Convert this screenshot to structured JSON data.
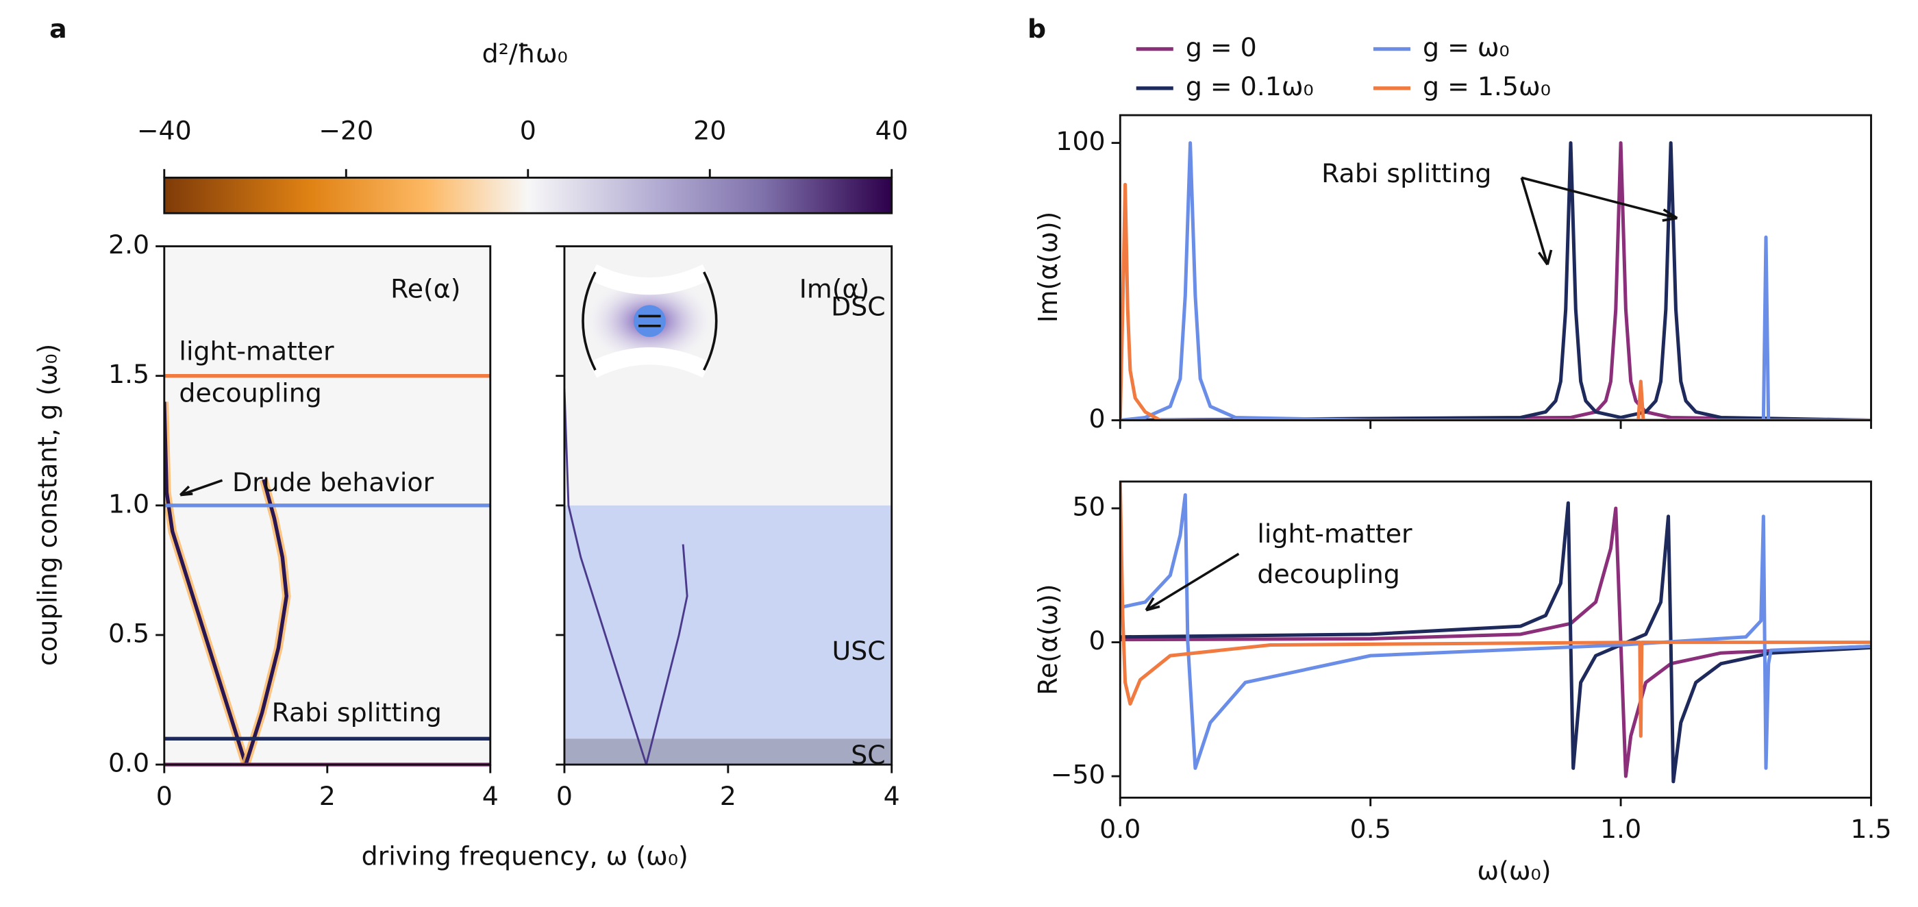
{
  "chart_data": [
    {
      "type": "colorbar",
      "panel_label": "a",
      "title": "d²/ħω₀",
      "lim": [
        -40,
        40
      ],
      "ticks": [
        {
          "value": -40,
          "label": "−40"
        },
        {
          "value": -20,
          "label": "−20"
        },
        0,
        20,
        40
      ]
    },
    {
      "type": "heatmap",
      "title": "Re(α)",
      "xlabel": "driving frequency, ω (ω₀)",
      "ylabel": "coupling constant, g (ω₀)",
      "xlim": [
        0,
        4
      ],
      "xticks": [
        0,
        2,
        4
      ],
      "ylim": [
        0,
        2
      ],
      "yticks": [
        {
          "value": 0,
          "label": "0.0"
        },
        0.5,
        {
          "value": 1,
          "label": "1.0"
        },
        1.5,
        {
          "value": 2,
          "label": "2.0"
        }
      ],
      "hlines": [
        {
          "value": 1.5,
          "color": "#f07a40"
        },
        {
          "value": 1,
          "color": "#6a8de8"
        },
        {
          "value": 0.1,
          "color": "#1f2a5c"
        },
        {
          "value": 0,
          "color": "#8b2f7a"
        }
      ],
      "curve_color": "#2a1650",
      "curves": [
        {
          "x": [
            1.0,
            0.8,
            0.6,
            0.4,
            0.2,
            0.1,
            0.03,
            0
          ],
          "y": [
            0,
            0.2,
            0.4,
            0.6,
            0.8,
            0.9,
            1.05,
            1.4
          ]
        },
        {
          "x": [
            1.0,
            1.2,
            1.4,
            1.5,
            1.45,
            1.35,
            1.22
          ],
          "y": [
            0,
            0.2,
            0.45,
            0.65,
            0.8,
            0.95,
            1.1
          ]
        }
      ],
      "annotations": [
        "light-matter",
        "decoupling",
        "Drude behavior",
        "Rabi splitting"
      ]
    },
    {
      "type": "heatmap",
      "title": "Im(α)",
      "xlim": [
        0,
        4
      ],
      "xticks": [
        0,
        2,
        4
      ],
      "ylim": [
        0,
        2
      ],
      "regions": [
        {
          "label": "DSC",
          "from": 1,
          "to": 2,
          "color": "#f4f4f4"
        },
        {
          "label": "USC",
          "from": 0.1,
          "to": 1,
          "color": "#c9d5f3"
        },
        {
          "label": "SC",
          "from": 0,
          "to": 0.1,
          "color": "#a5aac2"
        }
      ],
      "curve_color": "#4b3a8c",
      "curves": [
        {
          "x": [
            1.0,
            0.8,
            0.5,
            0.2,
            0.05,
            0
          ],
          "y": [
            0,
            0.2,
            0.5,
            0.8,
            1.0,
            1.45
          ]
        },
        {
          "x": [
            1.0,
            1.2,
            1.4,
            1.5,
            1.45
          ],
          "y": [
            0,
            0.25,
            0.5,
            0.65,
            0.85
          ]
        }
      ]
    },
    {
      "type": "line",
      "panel_label": "b",
      "ylabel": "Im(α(ω))",
      "xlim": [
        0,
        1.5
      ],
      "ylim": [
        0,
        110
      ],
      "yticks": [
        0,
        100
      ],
      "annotations": [
        "Rabi splitting"
      ],
      "series": [
        {
          "name": "g = 0",
          "color": "#8b2f7a",
          "x": [
            0,
            0.9,
            0.95,
            0.97,
            0.98,
            0.99,
            1.0,
            1.01,
            1.02,
            1.03,
            1.05,
            1.1,
            1.5
          ],
          "values": [
            0,
            1,
            3,
            7,
            14,
            40,
            100,
            40,
            14,
            7,
            3,
            1,
            0
          ]
        },
        {
          "name": "g = 0.1ω₀",
          "color": "#1f2a5c",
          "x": [
            0,
            0.8,
            0.85,
            0.87,
            0.88,
            0.89,
            0.9,
            0.91,
            0.92,
            0.93,
            0.95,
            1.0,
            1.05,
            1.07,
            1.08,
            1.09,
            1.1,
            1.11,
            1.12,
            1.13,
            1.15,
            1.2,
            1.5
          ],
          "values": [
            0,
            1,
            3,
            7,
            14,
            40,
            100,
            40,
            14,
            7,
            3,
            1,
            3,
            7,
            14,
            40,
            100,
            40,
            14,
            7,
            3,
            1,
            0
          ]
        },
        {
          "name": "g = ω₀",
          "color": "#6a8de8",
          "x": [
            0,
            0.05,
            0.1,
            0.12,
            0.13,
            0.14,
            0.15,
            0.16,
            0.18,
            0.23,
            0.5,
            1.285,
            1.29,
            1.295,
            1.5
          ],
          "values": [
            0,
            1,
            5,
            15,
            45,
            100,
            45,
            15,
            5,
            1,
            0,
            0,
            66,
            0,
            0
          ]
        },
        {
          "name": "g = 1.5ω₀",
          "color": "#f07a40",
          "x": [
            0,
            0.005,
            0.01,
            0.015,
            0.02,
            0.03,
            0.05,
            0.08,
            1.035,
            1.04,
            1.045,
            1.5
          ],
          "values": [
            0,
            40,
            85,
            40,
            18,
            8,
            3,
            0,
            0,
            14,
            0,
            0
          ]
        }
      ]
    },
    {
      "type": "line",
      "ylabel": "Re(α(ω))",
      "xlabel": "ω(ω₀)",
      "xlim": [
        0,
        1.5
      ],
      "xticks": [
        {
          "value": 0,
          "label": "0.0"
        },
        0.5,
        {
          "value": 1,
          "label": "1.0"
        },
        1.5
      ],
      "ylim": [
        -58,
        60
      ],
      "yticks": [
        {
          "value": -50,
          "label": "−50"
        },
        0,
        50
      ],
      "annotations": [
        "light-matter",
        "decoupling"
      ],
      "series": [
        {
          "color": "#8b2f7a",
          "x": [
            0,
            0.5,
            0.8,
            0.9,
            0.95,
            0.98,
            0.99,
            1.0,
            1.01,
            1.02,
            1.05,
            1.1,
            1.2,
            1.5
          ],
          "values": [
            1,
            1.3,
            3,
            7,
            15,
            35,
            50,
            0,
            -50,
            -35,
            -15,
            -8,
            -4,
            -1.5
          ]
        },
        {
          "color": "#1f2a5c",
          "x": [
            0,
            0.5,
            0.8,
            0.85,
            0.88,
            0.895,
            0.9,
            0.905,
            0.92,
            0.95,
            1.0,
            1.05,
            1.08,
            1.095,
            1.1,
            1.105,
            1.12,
            1.15,
            1.2,
            1.3,
            1.5
          ],
          "values": [
            2,
            3,
            6,
            10,
            22,
            52,
            0,
            -47,
            -15,
            -5,
            -1,
            3,
            15,
            47,
            0,
            -52,
            -30,
            -15,
            -8,
            -4,
            -2
          ]
        },
        {
          "color": "#6a8de8",
          "x": [
            0,
            0.05,
            0.1,
            0.12,
            0.13,
            0.135,
            0.15,
            0.18,
            0.25,
            0.5,
            1.0,
            1.25,
            1.28,
            1.285,
            1.29,
            1.295,
            1.3,
            1.5
          ],
          "values": [
            13,
            15,
            25,
            40,
            55,
            0,
            -47,
            -30,
            -15,
            -5,
            -1,
            2,
            8,
            47,
            -47,
            -8,
            -3,
            -1.5
          ]
        },
        {
          "color": "#f07a40",
          "x": [
            0,
            0.005,
            0.01,
            0.02,
            0.04,
            0.1,
            0.3,
            1.03,
            1.038,
            1.04,
            1.042,
            1.5
          ],
          "values": [
            60,
            10,
            -15,
            -23,
            -14,
            -5,
            -1,
            0,
            0,
            -35,
            0,
            0
          ]
        }
      ]
    }
  ]
}
